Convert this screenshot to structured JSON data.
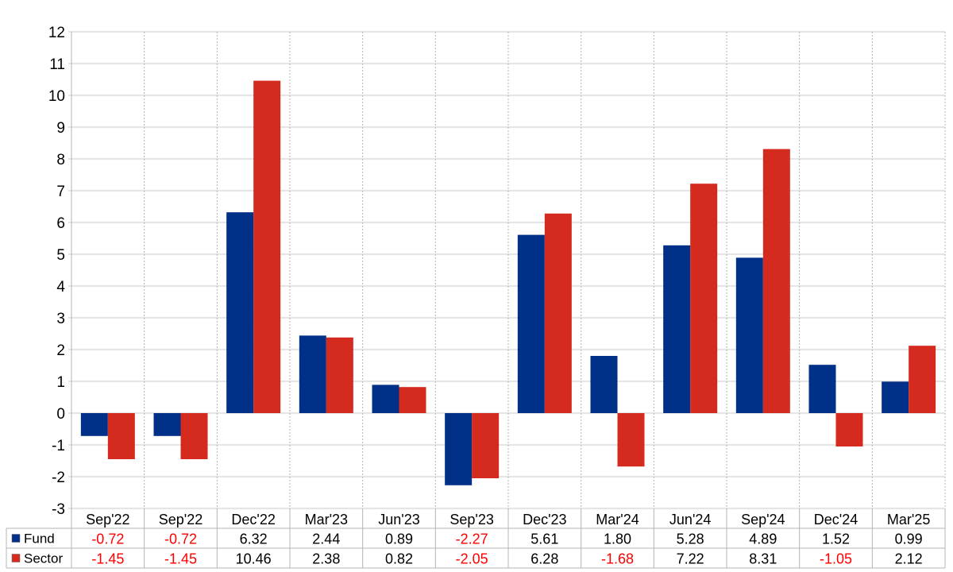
{
  "chart_data": {
    "type": "bar",
    "categories": [
      "Sep'22",
      "Sep'22",
      "Dec'22",
      "Mar'23",
      "Jun'23",
      "Sep'23",
      "Dec'23",
      "Mar'24",
      "Jun'24",
      "Sep'24",
      "Dec'24",
      "Mar'25"
    ],
    "series": [
      {
        "name": "Fund",
        "color": "#003087",
        "values": [
          -0.72,
          -0.72,
          6.32,
          2.44,
          0.89,
          -2.27,
          5.61,
          1.8,
          5.28,
          4.89,
          1.52,
          0.99
        ],
        "labels": [
          "-0.72",
          "-0.72",
          "6.32",
          "2.44",
          "0.89",
          "-2.27",
          "5.61",
          "1.80",
          "5.28",
          "4.89",
          "1.52",
          "0.99"
        ]
      },
      {
        "name": "Sector",
        "color": "#d52b1e",
        "values": [
          -1.45,
          -1.45,
          10.46,
          2.38,
          0.82,
          -2.05,
          6.28,
          -1.68,
          7.22,
          8.31,
          -1.05,
          2.12
        ],
        "labels": [
          "-1.45",
          "-1.45",
          "10.46",
          "2.38",
          "0.82",
          "-2.05",
          "6.28",
          "-1.68",
          "7.22",
          "8.31",
          "-1.05",
          "2.12"
        ]
      }
    ],
    "ylim": [
      -3,
      12
    ],
    "yticks": [
      "-3",
      "-2",
      "-1",
      "0",
      "1",
      "2",
      "3",
      "4",
      "5",
      "6",
      "7",
      "8",
      "9",
      "10",
      "11",
      "12"
    ],
    "grid": true,
    "legend": "data-table-left",
    "negative_value_color": "#ff0000",
    "title": "",
    "xlabel": "",
    "ylabel": ""
  }
}
